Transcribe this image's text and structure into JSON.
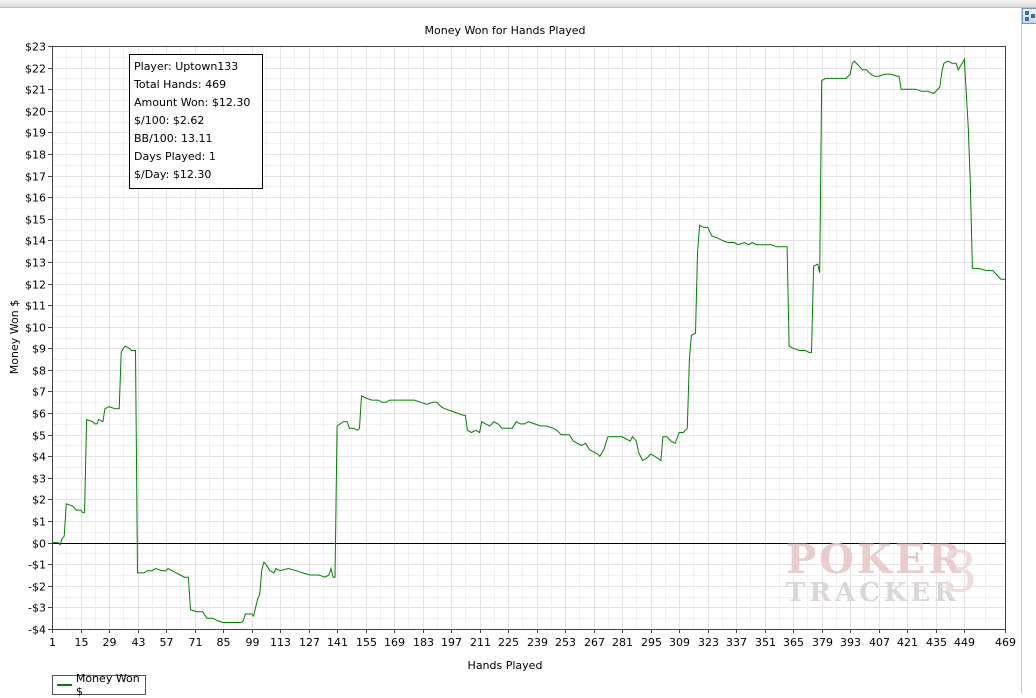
{
  "chart_data": {
    "type": "line",
    "title": "Money Won for Hands Played",
    "xlabel": "Hands Played",
    "ylabel": "Money Won $",
    "xlim": [
      1,
      469
    ],
    "ylim": [
      -4,
      23
    ],
    "xticks": [
      1,
      15,
      29,
      43,
      57,
      71,
      85,
      99,
      113,
      127,
      141,
      155,
      169,
      183,
      197,
      211,
      225,
      239,
      253,
      267,
      281,
      295,
      309,
      323,
      337,
      351,
      365,
      379,
      393,
      407,
      421,
      435,
      449,
      469
    ],
    "yticks": [
      {
        "v": 23,
        "label": "$23"
      },
      {
        "v": 22,
        "label": "$22"
      },
      {
        "v": 21,
        "label": "$21"
      },
      {
        "v": 20,
        "label": "$20"
      },
      {
        "v": 19,
        "label": "$19"
      },
      {
        "v": 18,
        "label": "$18"
      },
      {
        "v": 17,
        "label": "$17"
      },
      {
        "v": 16,
        "label": "$16"
      },
      {
        "v": 15,
        "label": "$15"
      },
      {
        "v": 14,
        "label": "$14"
      },
      {
        "v": 13,
        "label": "$13"
      },
      {
        "v": 12,
        "label": "$12"
      },
      {
        "v": 11,
        "label": "$11"
      },
      {
        "v": 10,
        "label": "$10"
      },
      {
        "v": 9,
        "label": "$9"
      },
      {
        "v": 8,
        "label": "$8"
      },
      {
        "v": 7,
        "label": "$7"
      },
      {
        "v": 6,
        "label": "$6"
      },
      {
        "v": 5,
        "label": "$5"
      },
      {
        "v": 4,
        "label": "$4"
      },
      {
        "v": 3,
        "label": "$3"
      },
      {
        "v": 2,
        "label": "$2"
      },
      {
        "v": 1,
        "label": "$1"
      },
      {
        "v": 0,
        "label": "$0"
      },
      {
        "v": -1,
        "label": "-$1"
      },
      {
        "v": -2,
        "label": "-$2"
      },
      {
        "v": -3,
        "label": "-$3"
      },
      {
        "v": -4,
        "label": "-$4"
      }
    ],
    "grid": true,
    "legend_position": "bottom-left",
    "series": [
      {
        "name": "Money Won $",
        "color": "#008000",
        "points": [
          [
            1,
            0
          ],
          [
            4,
            0
          ],
          [
            5,
            -0.1
          ],
          [
            6,
            0.2
          ],
          [
            7,
            0.3
          ],
          [
            8,
            1.8
          ],
          [
            11,
            1.7
          ],
          [
            13,
            1.5
          ],
          [
            15,
            1.5
          ],
          [
            16,
            1.4
          ],
          [
            17,
            1.4
          ],
          [
            18,
            5.7
          ],
          [
            21,
            5.6
          ],
          [
            22,
            5.5
          ],
          [
            23,
            5.5
          ],
          [
            24,
            5.7
          ],
          [
            26,
            5.6
          ],
          [
            27,
            6.2
          ],
          [
            29,
            6.3
          ],
          [
            32,
            6.2
          ],
          [
            34,
            6.2
          ],
          [
            35,
            8.8
          ],
          [
            36,
            9.0
          ],
          [
            37,
            9.1
          ],
          [
            39,
            9.0
          ],
          [
            40,
            8.9
          ],
          [
            42,
            8.9
          ],
          [
            43,
            -1.4
          ],
          [
            46,
            -1.4
          ],
          [
            48,
            -1.3
          ],
          [
            50,
            -1.3
          ],
          [
            52,
            -1.2
          ],
          [
            55,
            -1.3
          ],
          [
            57,
            -1.3
          ],
          [
            58,
            -1.2
          ],
          [
            60,
            -1.3
          ],
          [
            62,
            -1.4
          ],
          [
            64,
            -1.5
          ],
          [
            66,
            -1.6
          ],
          [
            68,
            -1.6
          ],
          [
            69,
            -3.1
          ],
          [
            72,
            -3.2
          ],
          [
            75,
            -3.2
          ],
          [
            77,
            -3.5
          ],
          [
            80,
            -3.5
          ],
          [
            82,
            -3.6
          ],
          [
            85,
            -3.7
          ],
          [
            88,
            -3.7
          ],
          [
            91,
            -3.7
          ],
          [
            94,
            -3.7
          ],
          [
            95,
            -3.6
          ],
          [
            96,
            -3.3
          ],
          [
            99,
            -3.3
          ],
          [
            100,
            -3.4
          ],
          [
            101,
            -3.0
          ],
          [
            102,
            -2.6
          ],
          [
            103,
            -2.4
          ],
          [
            104,
            -1.3
          ],
          [
            105,
            -0.9
          ],
          [
            106,
            -1.0
          ],
          [
            108,
            -1.3
          ],
          [
            110,
            -1.4
          ],
          [
            111,
            -1.2
          ],
          [
            113,
            -1.3
          ],
          [
            117,
            -1.2
          ],
          [
            121,
            -1.3
          ],
          [
            124,
            -1.4
          ],
          [
            128,
            -1.5
          ],
          [
            132,
            -1.5
          ],
          [
            135,
            -1.6
          ],
          [
            137,
            -1.5
          ],
          [
            138,
            -1.2
          ],
          [
            139,
            -1.6
          ],
          [
            140,
            -1.6
          ],
          [
            141,
            5.4
          ],
          [
            144,
            5.6
          ],
          [
            146,
            5.6
          ],
          [
            147,
            5.3
          ],
          [
            149,
            5.3
          ],
          [
            151,
            5.2
          ],
          [
            152,
            5.3
          ],
          [
            153,
            6.8
          ],
          [
            155,
            6.7
          ],
          [
            158,
            6.6
          ],
          [
            161,
            6.6
          ],
          [
            163,
            6.5
          ],
          [
            165,
            6.5
          ],
          [
            167,
            6.6
          ],
          [
            170,
            6.6
          ],
          [
            173,
            6.6
          ],
          [
            176,
            6.6
          ],
          [
            179,
            6.6
          ],
          [
            182,
            6.5
          ],
          [
            185,
            6.4
          ],
          [
            188,
            6.5
          ],
          [
            190,
            6.5
          ],
          [
            192,
            6.3
          ],
          [
            194,
            6.2
          ],
          [
            197,
            6.1
          ],
          [
            200,
            6.0
          ],
          [
            203,
            5.9
          ],
          [
            204,
            5.9
          ],
          [
            205,
            5.2
          ],
          [
            207,
            5.1
          ],
          [
            209,
            5.2
          ],
          [
            211,
            5.1
          ],
          [
            212,
            5.6
          ],
          [
            214,
            5.5
          ],
          [
            216,
            5.4
          ],
          [
            218,
            5.6
          ],
          [
            220,
            5.5
          ],
          [
            222,
            5.3
          ],
          [
            225,
            5.3
          ],
          [
            227,
            5.3
          ],
          [
            229,
            5.6
          ],
          [
            231,
            5.5
          ],
          [
            233,
            5.5
          ],
          [
            235,
            5.6
          ],
          [
            238,
            5.5
          ],
          [
            241,
            5.4
          ],
          [
            244,
            5.4
          ],
          [
            247,
            5.3
          ],
          [
            249,
            5.2
          ],
          [
            251,
            5.0
          ],
          [
            253,
            5.0
          ],
          [
            255,
            5.0
          ],
          [
            257,
            4.7
          ],
          [
            259,
            4.6
          ],
          [
            261,
            4.5
          ],
          [
            263,
            4.6
          ],
          [
            265,
            4.3
          ],
          [
            267,
            4.2
          ],
          [
            269,
            4.1
          ],
          [
            270,
            4.0
          ],
          [
            272,
            4.3
          ],
          [
            274,
            4.9
          ],
          [
            278,
            4.9
          ],
          [
            281,
            4.9
          ],
          [
            283,
            4.8
          ],
          [
            285,
            4.7
          ],
          [
            286,
            4.9
          ],
          [
            288,
            4.7
          ],
          [
            289,
            4.2
          ],
          [
            291,
            3.8
          ],
          [
            293,
            3.9
          ],
          [
            295,
            4.1
          ],
          [
            297,
            4.0
          ],
          [
            300,
            3.8
          ],
          [
            301,
            4.9
          ],
          [
            303,
            4.9
          ],
          [
            305,
            4.7
          ],
          [
            307,
            4.6
          ],
          [
            309,
            5.1
          ],
          [
            311,
            5.1
          ],
          [
            313,
            5.3
          ],
          [
            314,
            8.5
          ],
          [
            315,
            9.6
          ],
          [
            317,
            9.7
          ],
          [
            318,
            13.4
          ],
          [
            319,
            14.7
          ],
          [
            321,
            14.6
          ],
          [
            323,
            14.6
          ],
          [
            325,
            14.2
          ],
          [
            328,
            14.1
          ],
          [
            330,
            14.0
          ],
          [
            333,
            13.9
          ],
          [
            336,
            13.9
          ],
          [
            338,
            13.8
          ],
          [
            341,
            13.9
          ],
          [
            343,
            13.8
          ],
          [
            345,
            13.9
          ],
          [
            347,
            13.8
          ],
          [
            349,
            13.8
          ],
          [
            351,
            13.8
          ],
          [
            354,
            13.8
          ],
          [
            357,
            13.7
          ],
          [
            360,
            13.7
          ],
          [
            362,
            13.7
          ],
          [
            363,
            9.1
          ],
          [
            365,
            9.0
          ],
          [
            368,
            8.9
          ],
          [
            371,
            8.9
          ],
          [
            373,
            8.8
          ],
          [
            374,
            8.8
          ],
          [
            375,
            12.8
          ],
          [
            377,
            12.9
          ],
          [
            378,
            12.5
          ],
          [
            379,
            21.4
          ],
          [
            381,
            21.5
          ],
          [
            384,
            21.5
          ],
          [
            387,
            21.5
          ],
          [
            391,
            21.5
          ],
          [
            393,
            21.7
          ],
          [
            394,
            22.2
          ],
          [
            395,
            22.3
          ],
          [
            397,
            22.1
          ],
          [
            399,
            21.9
          ],
          [
            401,
            21.9
          ],
          [
            403,
            21.7
          ],
          [
            405,
            21.6
          ],
          [
            407,
            21.6
          ],
          [
            410,
            21.7
          ],
          [
            413,
            21.7
          ],
          [
            416,
            21.6
          ],
          [
            417,
            21.6
          ],
          [
            418,
            21.0
          ],
          [
            421,
            21.0
          ],
          [
            425,
            21.0
          ],
          [
            428,
            20.9
          ],
          [
            431,
            20.9
          ],
          [
            434,
            20.8
          ],
          [
            437,
            21.1
          ],
          [
            438,
            21.8
          ],
          [
            439,
            22.2
          ],
          [
            441,
            22.3
          ],
          [
            443,
            22.2
          ],
          [
            445,
            22.2
          ],
          [
            446,
            21.9
          ],
          [
            448,
            22.2
          ],
          [
            449,
            22.4
          ],
          [
            451,
            19.2
          ],
          [
            452,
            16.5
          ],
          [
            453,
            12.7
          ],
          [
            456,
            12.7
          ],
          [
            460,
            12.6
          ],
          [
            463,
            12.6
          ],
          [
            465,
            12.4
          ],
          [
            467,
            12.2
          ],
          [
            469,
            12.2
          ]
        ]
      }
    ]
  },
  "stats": [
    "Player: Uptown133",
    "Total Hands: 469",
    "Amount Won: $12.30",
    "$/100: $2.62",
    "BB/100: 13.11",
    "Days Played: 1",
    "$/Day: $12.30"
  ],
  "watermark": {
    "line1": "POKER",
    "line2": "TRACKER",
    "mark": "3"
  }
}
